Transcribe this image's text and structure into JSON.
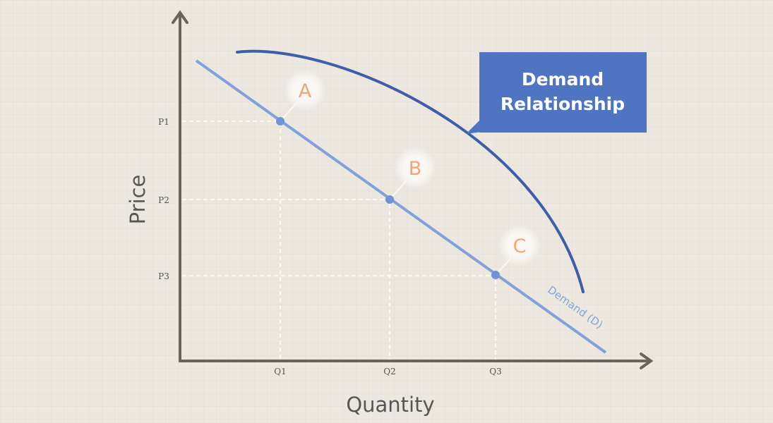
{
  "callout": {
    "lines": [
      "Demand",
      "Relationship"
    ]
  },
  "axes": {
    "y_label": "Price",
    "x_label": "Quantity",
    "price_levels": [
      "P1",
      "P2",
      "P3"
    ],
    "quantity_levels": [
      "Q1",
      "Q2",
      "Q3"
    ]
  },
  "points": [
    "A",
    "B",
    "C"
  ],
  "curve_label": "Demand (D)"
}
